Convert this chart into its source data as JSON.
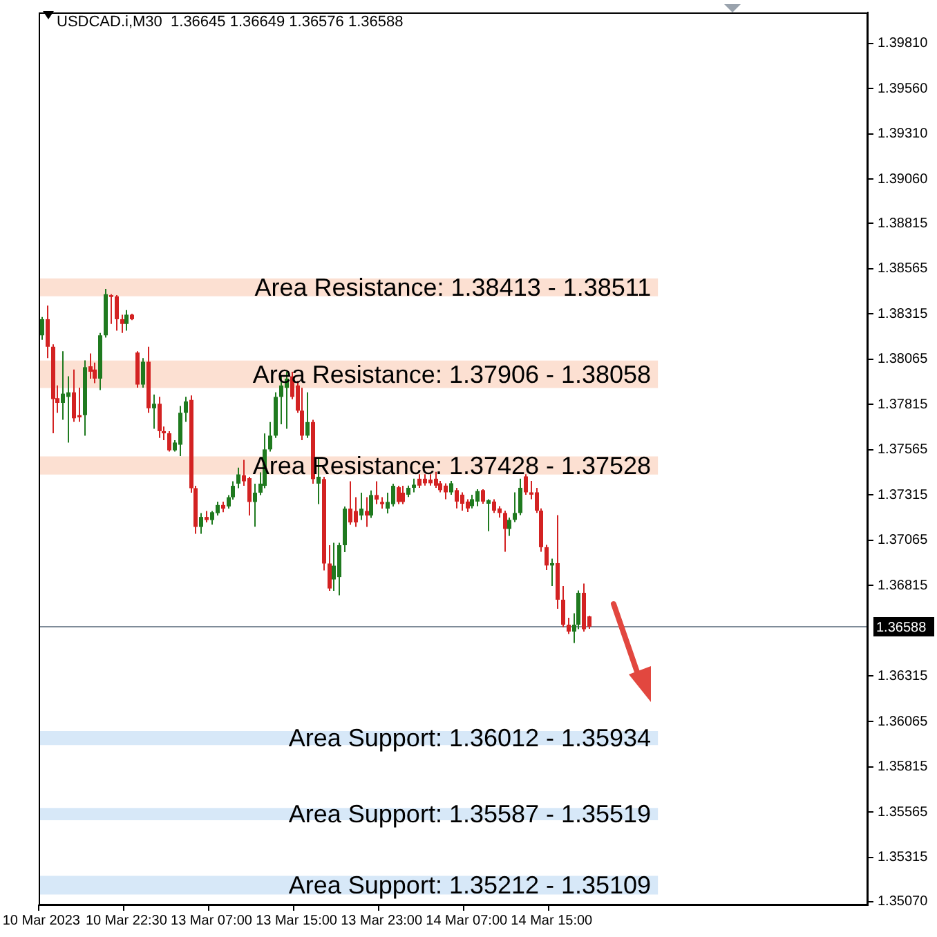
{
  "chart_data": {
    "type": "candlestick",
    "title": "USDCAD.i,M30  1.36645 1.36649 1.36576 1.36588",
    "categories": [
      "10 Mar 2023",
      null,
      null,
      null,
      null,
      null,
      null,
      null,
      null,
      null,
      null,
      null,
      null,
      null,
      null,
      null,
      "10 Mar 22:30",
      null,
      null,
      null,
      null,
      null,
      null,
      null,
      null,
      null,
      null,
      null,
      null,
      null,
      null,
      null,
      "13 Mar 07:00",
      null,
      null,
      null,
      null,
      null,
      null,
      null,
      null,
      null,
      null,
      null,
      null,
      null,
      null,
      null,
      "13 Mar 15:00",
      null,
      null,
      null,
      null,
      null,
      null,
      null,
      null,
      null,
      null,
      null,
      null,
      null,
      null,
      null,
      "13 Mar 23:00",
      null,
      null,
      null,
      null,
      null,
      null,
      null,
      null,
      null,
      null,
      null,
      null,
      null,
      null,
      null,
      "14 Mar 07:00",
      null,
      null,
      null,
      null,
      null,
      null,
      null,
      null,
      null,
      null,
      null,
      null,
      null,
      null,
      null,
      "14 Mar 15:00",
      null,
      null,
      null,
      null,
      null,
      null,
      null,
      null,
      null,
      null,
      null,
      null,
      null,
      null,
      null,
      null,
      null,
      null,
      null,
      null,
      null,
      null,
      null,
      null,
      null,
      null,
      null,
      null,
      null,
      null,
      null,
      null,
      null,
      null,
      null,
      null,
      null,
      null,
      null,
      null,
      null,
      null,
      null,
      null,
      null,
      null,
      null,
      null,
      null,
      null,
      null,
      null,
      null,
      null,
      null,
      null,
      null,
      null,
      null
    ],
    "ohlc": [
      [
        1.38197,
        1.38298,
        1.38172,
        1.38286
      ],
      [
        1.38286,
        1.38361,
        1.38071,
        1.38134
      ],
      [
        1.38134,
        1.38147,
        1.37656,
        1.37845
      ],
      [
        1.3785,
        1.3792,
        1.37769,
        1.37824
      ],
      [
        1.37824,
        1.38109,
        1.37731,
        1.37875
      ],
      [
        1.37857,
        1.37971,
        1.37605,
        1.37882
      ],
      [
        1.37882,
        1.38008,
        1.37719,
        1.37739
      ],
      [
        1.37756,
        1.37908,
        1.37719,
        1.37744
      ],
      [
        1.37756,
        1.38059,
        1.37643,
        1.38021
      ],
      [
        1.38026,
        1.38097,
        1.37958,
        1.37996
      ],
      [
        1.38008,
        1.38046,
        1.37933,
        1.37958
      ],
      [
        1.37958,
        1.3821,
        1.37895,
        1.38197
      ],
      [
        1.38197,
        1.38454,
        1.38185,
        1.38424
      ],
      [
        1.38419,
        1.38424,
        1.3826,
        1.38409
      ],
      [
        1.38412,
        1.38419,
        1.38223,
        1.38286
      ],
      [
        1.38286,
        1.38311,
        1.3821,
        1.3826
      ],
      [
        1.3826,
        1.38336,
        1.38223,
        1.38311
      ],
      [
        1.38311,
        1.38316,
        1.38281,
        1.38286
      ],
      [
        1.38102,
        1.38109,
        1.37908,
        1.37925
      ],
      [
        1.37925,
        1.38071,
        1.37908,
        1.38051
      ],
      [
        1.38051,
        1.38134,
        1.37769,
        1.37794
      ],
      [
        1.37794,
        1.3787,
        1.37681,
        1.37819
      ],
      [
        1.37819,
        1.37857,
        1.3763,
        1.37668
      ],
      [
        1.37668,
        1.37693,
        1.37618,
        1.37656
      ],
      [
        1.37656,
        1.37668,
        1.37555,
        1.37562
      ],
      [
        1.37562,
        1.37618,
        1.37555,
        1.37605
      ],
      [
        1.37593,
        1.37807,
        1.3753,
        1.37769
      ],
      [
        1.37769,
        1.37857,
        1.37719,
        1.37832
      ],
      [
        1.3784,
        1.37865,
        1.37328,
        1.37353
      ],
      [
        1.37353,
        1.37366,
        1.37101,
        1.37139
      ],
      [
        1.37139,
        1.37215,
        1.37101,
        1.37194
      ],
      [
        1.37194,
        1.37227,
        1.37164,
        1.37177
      ],
      [
        1.37177,
        1.37227,
        1.37152,
        1.3722
      ],
      [
        1.37215,
        1.37278,
        1.37202,
        1.3726
      ],
      [
        1.3726,
        1.37278,
        1.3722,
        1.3724
      ],
      [
        1.37252,
        1.37315,
        1.3724,
        1.37303
      ],
      [
        1.37303,
        1.37391,
        1.3729,
        1.37366
      ],
      [
        1.37378,
        1.37466,
        1.37353,
        1.37429
      ],
      [
        1.37424,
        1.37509,
        1.37366,
        1.37391
      ],
      [
        1.37408,
        1.37416,
        1.37202,
        1.37277
      ],
      [
        1.37277,
        1.37378,
        1.3714,
        1.37328
      ],
      [
        1.37328,
        1.37441,
        1.37315,
        1.37378
      ],
      [
        1.37366,
        1.37655,
        1.37353,
        1.37567
      ],
      [
        1.37567,
        1.37718,
        1.37555,
        1.37643
      ],
      [
        1.37643,
        1.37882,
        1.3763,
        1.37857
      ],
      [
        1.37857,
        1.3797,
        1.37706,
        1.3792
      ],
      [
        1.37907,
        1.37996,
        1.37681,
        1.37958
      ],
      [
        1.3797,
        1.37996,
        1.37844,
        1.37857
      ],
      [
        1.3792,
        1.37945,
        1.37769,
        1.37781
      ],
      [
        1.37781,
        1.37907,
        1.37618,
        1.37643
      ],
      [
        1.37643,
        1.37882,
        1.3763,
        1.37718
      ],
      [
        1.37718,
        1.37731,
        1.37378,
        1.37403
      ],
      [
        1.37378,
        1.37517,
        1.37265,
        1.37416
      ],
      [
        1.37403,
        1.37416,
        1.36899,
        1.36937
      ],
      [
        1.36937,
        1.37038,
        1.36786,
        1.36799
      ],
      [
        1.36849,
        1.37051,
        1.36786,
        1.36925
      ],
      [
        1.36862,
        1.37051,
        1.36761,
        1.37038
      ],
      [
        1.37038,
        1.37252,
        1.37,
        1.3724
      ],
      [
        1.3724,
        1.37391,
        1.37151,
        1.37164
      ],
      [
        1.37227,
        1.37303,
        1.37139,
        1.37164
      ],
      [
        1.37202,
        1.37328,
        1.37177,
        1.3724
      ],
      [
        1.37227,
        1.37303,
        1.37139,
        1.37202
      ],
      [
        1.37202,
        1.3734,
        1.37189,
        1.37315
      ],
      [
        1.37315,
        1.37391,
        1.37265,
        1.3729
      ],
      [
        1.37277,
        1.37303,
        1.3724,
        1.37265
      ],
      [
        1.3724,
        1.37328,
        1.37214,
        1.37277
      ],
      [
        1.37265,
        1.37378,
        1.37252,
        1.37366
      ],
      [
        1.37358,
        1.37366,
        1.37265,
        1.37277
      ],
      [
        1.37328,
        1.37366,
        1.37265,
        1.37277
      ],
      [
        1.37317,
        1.37367,
        1.37304,
        1.37355
      ],
      [
        1.37355,
        1.37405,
        1.3733,
        1.37372
      ],
      [
        1.37405,
        1.3743,
        1.37355,
        1.37367
      ],
      [
        1.37405,
        1.3743,
        1.37367,
        1.3738
      ],
      [
        1.374,
        1.3743,
        1.37367,
        1.3738
      ],
      [
        1.37405,
        1.37443,
        1.37355,
        1.37367
      ],
      [
        1.3738,
        1.37393,
        1.3733,
        1.37342
      ],
      [
        1.37367,
        1.3738,
        1.37292,
        1.3733
      ],
      [
        1.3733,
        1.37393,
        1.37317,
        1.3738
      ],
      [
        1.37342,
        1.37355,
        1.37241,
        1.37279
      ],
      [
        1.37317,
        1.3733,
        1.37229,
        1.37267
      ],
      [
        1.37279,
        1.37292,
        1.37221,
        1.37241
      ],
      [
        1.37254,
        1.37317,
        1.37241,
        1.37292
      ],
      [
        1.37279,
        1.37347,
        1.37254,
        1.37337
      ],
      [
        1.37342,
        1.37347,
        1.37267,
        1.37279
      ],
      [
        1.37267,
        1.37292,
        1.37115,
        1.37287
      ],
      [
        1.37279,
        1.37292,
        1.37216,
        1.37229
      ],
      [
        1.37241,
        1.37254,
        1.37191,
        1.37216
      ],
      [
        1.37216,
        1.37229,
        1.37002,
        1.37128
      ],
      [
        1.37128,
        1.37191,
        1.3709,
        1.37178
      ],
      [
        1.37178,
        1.3733,
        1.37166,
        1.37216
      ],
      [
        1.37216,
        1.37405,
        1.37204,
        1.37355
      ],
      [
        1.37418,
        1.3743,
        1.37317,
        1.3733
      ],
      [
        1.3733,
        1.37393,
        1.37292,
        1.37317
      ],
      [
        1.3733,
        1.37355,
        1.37216,
        1.37229
      ],
      [
        1.37229,
        1.37241,
        1.37002,
        1.37027
      ],
      [
        1.37027,
        1.3704,
        1.36901,
        1.36926
      ],
      [
        1.36926,
        1.36964,
        1.36813,
        1.36939
      ],
      [
        1.36939,
        1.37204,
        1.36687,
        1.36737
      ],
      [
        1.36737,
        1.36813,
        1.36586,
        1.36599
      ],
      [
        1.36599,
        1.36637,
        1.36548,
        1.36561
      ],
      [
        1.36561,
        1.36662,
        1.36498,
        1.36599
      ],
      [
        1.36599,
        1.36788,
        1.36574,
        1.36775
      ],
      [
        1.36775,
        1.36826,
        1.36561,
        1.36574
      ],
      [
        1.36645,
        1.36649,
        1.36576,
        1.36588
      ],
      null,
      null,
      null,
      null,
      null,
      null,
      null,
      null,
      null,
      null,
      null,
      null,
      null,
      null,
      null,
      null,
      null,
      null,
      null,
      null,
      null,
      null,
      null,
      null,
      null,
      null,
      null,
      null,
      null,
      null,
      null,
      null,
      null,
      null,
      null,
      null,
      null,
      null,
      null,
      null,
      null,
      null,
      null,
      null,
      null,
      null,
      null,
      null,
      null,
      null,
      null,
      null
    ],
    "ylim": [
      1.3505,
      1.3998
    ],
    "yticks": [
      {
        "value": 1.3981,
        "label": "1.39810"
      },
      {
        "value": 1.3956,
        "label": "1.39560"
      },
      {
        "value": 1.3931,
        "label": "1.39310"
      },
      {
        "value": 1.3906,
        "label": "1.39060"
      },
      {
        "value": 1.38815,
        "label": "1.38815"
      },
      {
        "value": 1.38565,
        "label": "1.38565"
      },
      {
        "value": 1.38315,
        "label": "1.38315"
      },
      {
        "value": 1.38065,
        "label": "1.38065"
      },
      {
        "value": 1.37815,
        "label": "1.37815"
      },
      {
        "value": 1.37565,
        "label": "1.37565"
      },
      {
        "value": 1.37315,
        "label": "1.37315"
      },
      {
        "value": 1.37065,
        "label": "1.37065"
      },
      {
        "value": 1.36815,
        "label": "1.36815"
      },
      {
        "value": 1.36315,
        "label": "1.36315"
      },
      {
        "value": 1.36065,
        "label": "1.36065"
      },
      {
        "value": 1.35815,
        "label": "1.35815"
      },
      {
        "value": 1.35565,
        "label": "1.35565"
      },
      {
        "value": 1.35315,
        "label": "1.35315"
      },
      {
        "value": 1.3507,
        "label": "1.35070"
      }
    ],
    "ref_lines": [
      {
        "axis": "y",
        "value": 1.36588,
        "label": "1.36588",
        "color": "#7f8c99"
      }
    ],
    "bands": [
      {
        "axis": "y",
        "from": 1.38413,
        "to": 1.38511,
        "label": "Area Resistance: 1.38413 - 1.38511",
        "color": "#fce0d2"
      },
      {
        "axis": "y",
        "from": 1.37906,
        "to": 1.38058,
        "label": "Area Resistance: 1.37906 - 1.38058",
        "color": "#fce0d2"
      },
      {
        "axis": "y",
        "from": 1.37428,
        "to": 1.37528,
        "label": "Area Resistance: 1.37428 - 1.37528",
        "color": "#fce0d2"
      },
      {
        "axis": "y",
        "from": 1.36012,
        "to": 1.35934,
        "label": "Area Support: 1.36012 - 1.35934",
        "color": "#d7e8f8"
      },
      {
        "axis": "y",
        "from": 1.35587,
        "to": 1.35519,
        "label": "Area Support: 1.35587 - 1.35519",
        "color": "#d7e8f8"
      },
      {
        "axis": "y",
        "from": 1.35212,
        "to": 1.35109,
        "label": "Area Support: 1.35212 - 1.35109",
        "color": "#d7e8f8"
      }
    ]
  }
}
